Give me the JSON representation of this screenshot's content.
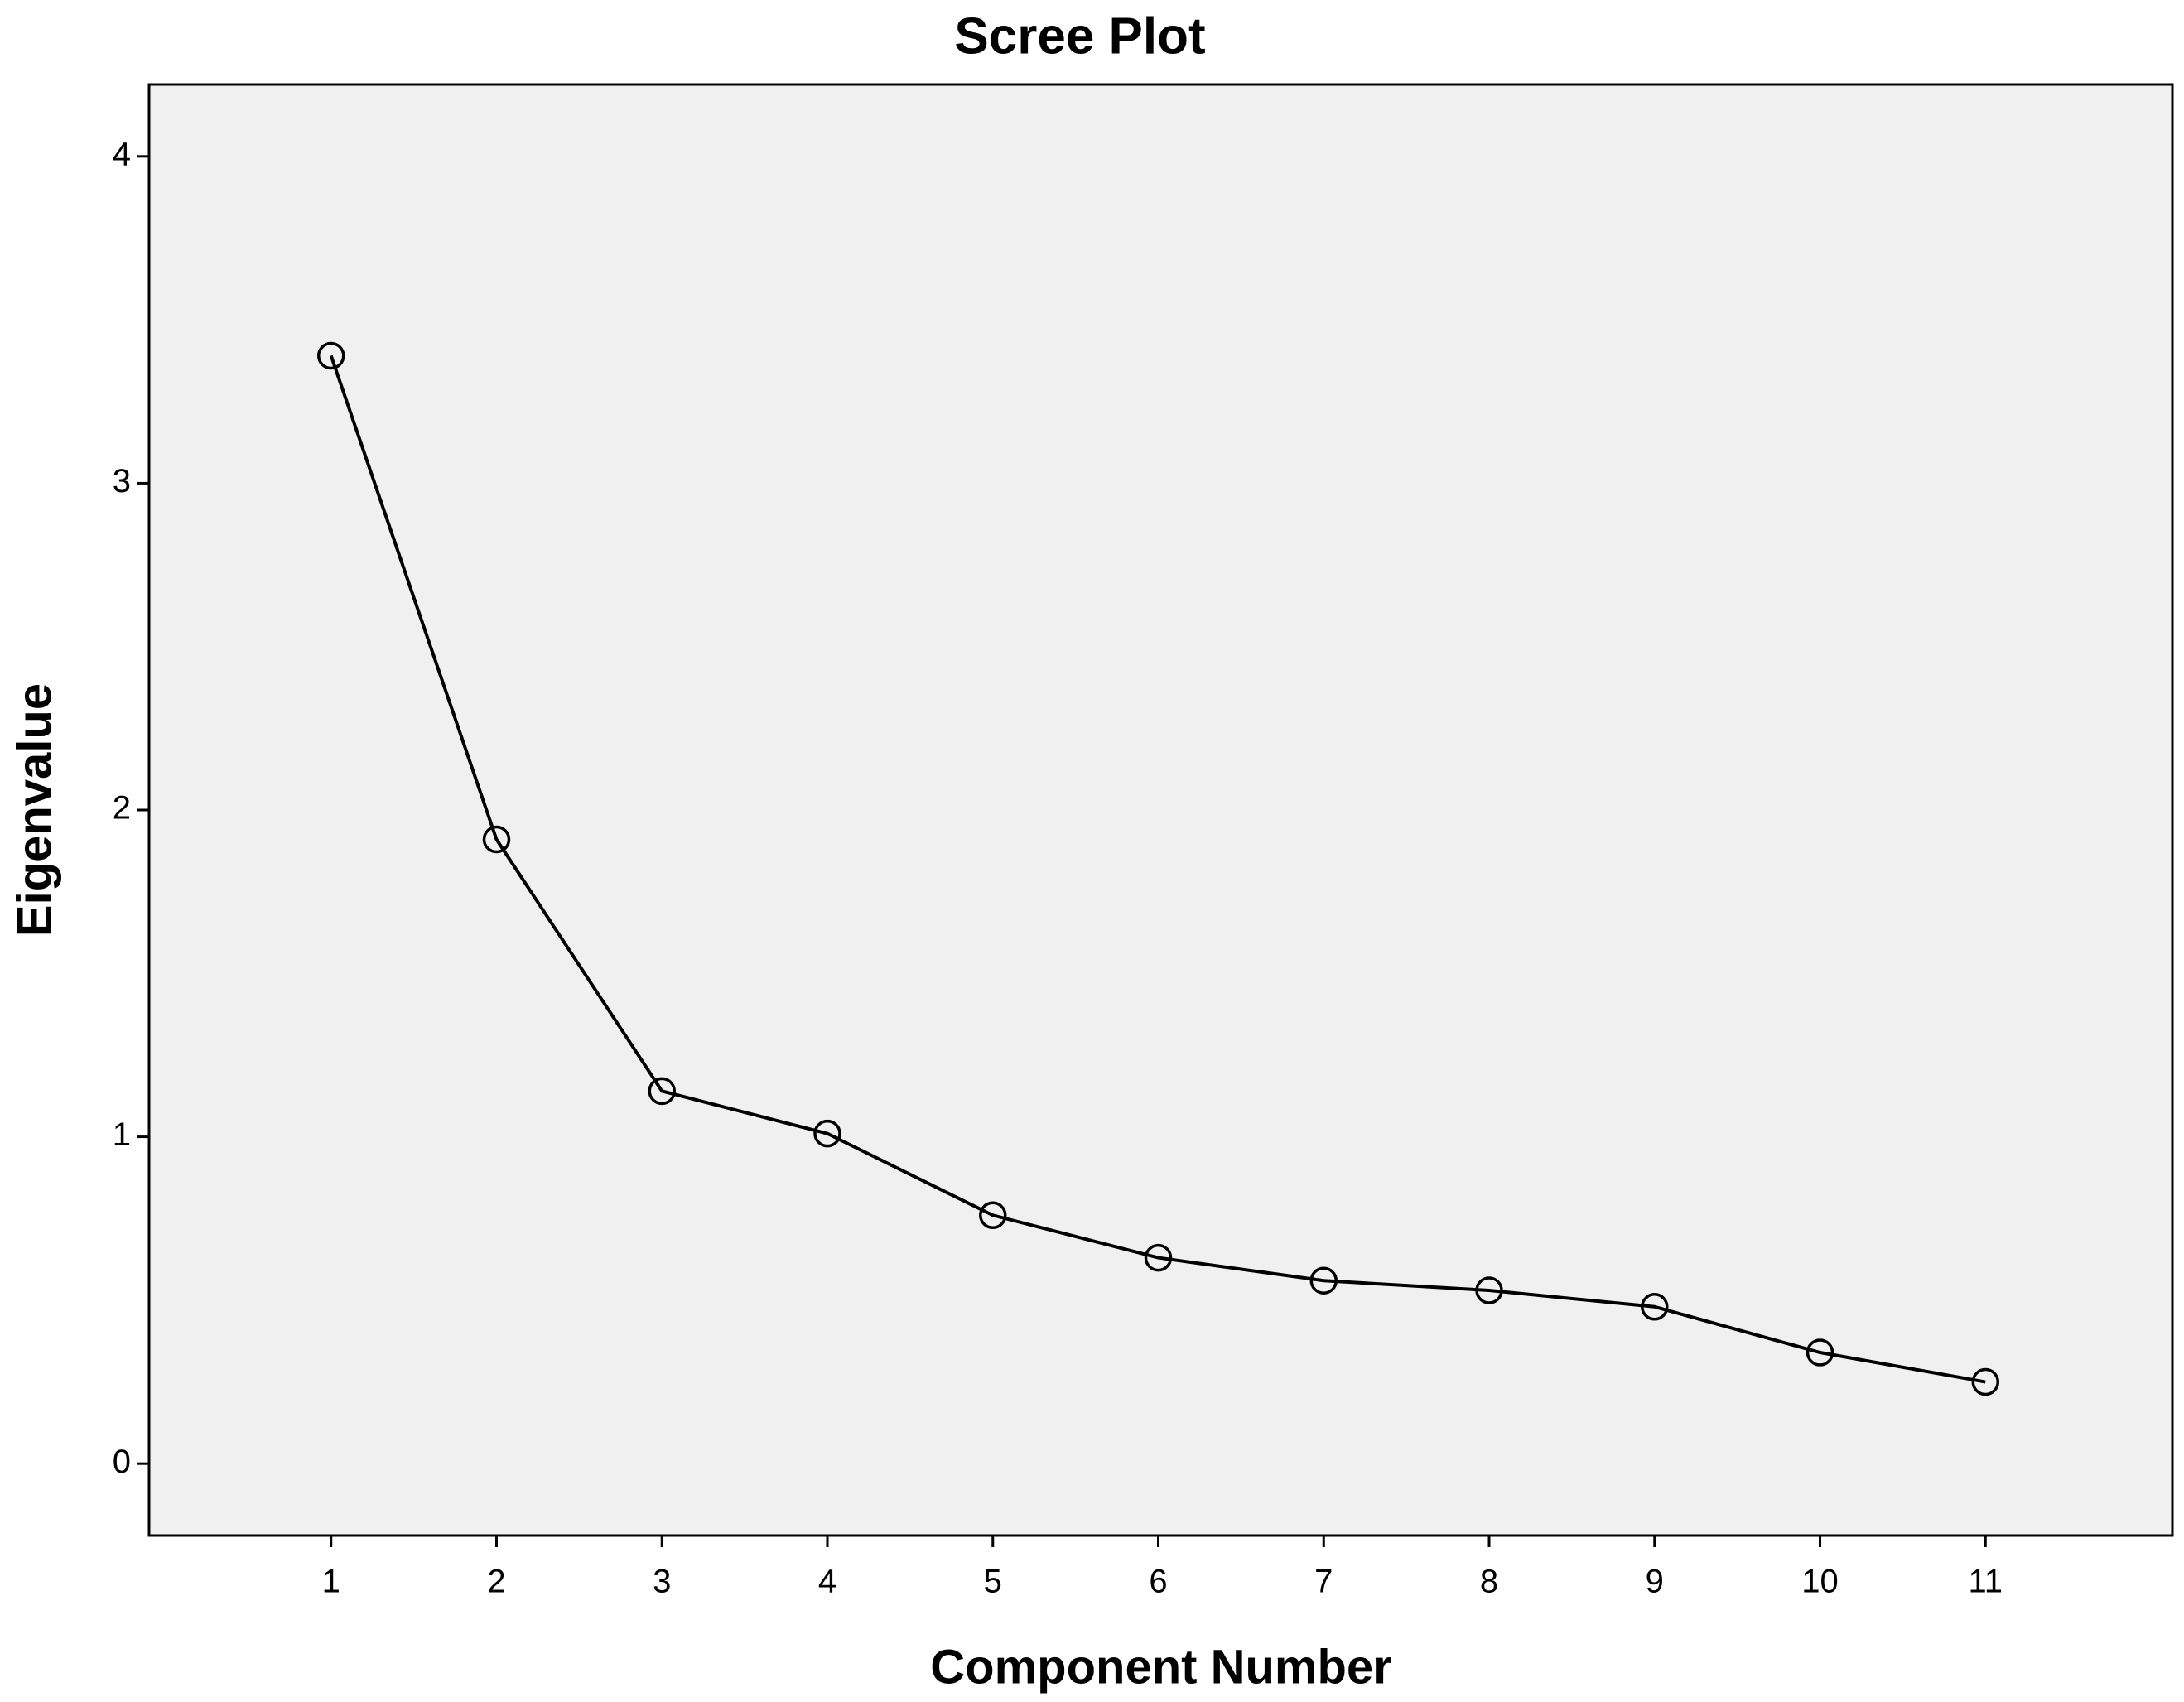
{
  "chart_data": {
    "type": "line",
    "title": "Scree Plot",
    "x_label": "Component Number",
    "y_label": "Eigenvalue",
    "x": [
      1,
      2,
      3,
      4,
      5,
      6,
      7,
      8,
      9,
      10,
      11
    ],
    "series": [
      {
        "name": "Eigenvalue",
        "color": "#000000",
        "values": [
          3.39,
          1.91,
          1.14,
          1.01,
          0.76,
          0.63,
          0.56,
          0.53,
          0.48,
          0.34,
          0.25
        ]
      }
    ],
    "xlim": [
      -0.1,
      12.13
    ],
    "xticks": [
      1,
      2,
      3,
      4,
      5,
      6,
      7,
      8,
      9,
      10,
      11
    ],
    "ylim": [
      -0.22,
      4.22
    ],
    "yticks": [
      0,
      1,
      2,
      3,
      4
    ],
    "plot_background": "#f0f0f0",
    "markers": "open-circle"
  }
}
